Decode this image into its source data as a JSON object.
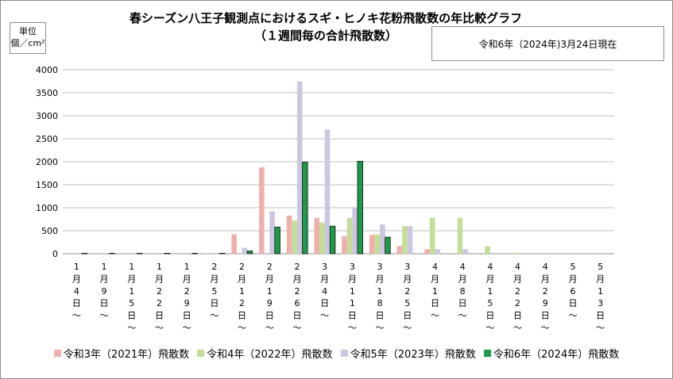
{
  "title_line1": "春シーズン八王子観測点におけるスギ・ヒノキ花粉飛散数の年比較グラフ",
  "title_line2": "（１週間毎の合計飛散数）",
  "unit_line1": "単位",
  "unit_line2": "個／cm²",
  "as_of": "令和6年（2024年)3月24日現在",
  "colors": {
    "s2021": "#efb0ad",
    "s2022": "#c4de97",
    "s2023": "#cdc6e0",
    "s2024": "#1d9a4a",
    "grid": "#bfbfbf",
    "axis": "#8c8c8c"
  },
  "chart_data": {
    "type": "bar",
    "title": "春シーズン八王子観測点におけるスギ・ヒノキ花粉飛散数の年比較グラフ（１週間毎の合計飛散数）",
    "ylabel": "単位 個／cm²",
    "ylim": [
      0,
      4000
    ],
    "yticks": [
      0,
      500,
      1000,
      1500,
      2000,
      2500,
      3000,
      3500,
      4000
    ],
    "grid": true,
    "legend": "bottom",
    "categories": [
      "1月4日～",
      "1月9日～",
      "1月15日～",
      "1月22日～",
      "1月29日～",
      "2月5日～",
      "2月12日～",
      "2月19日～",
      "2月26日～",
      "3月4日～",
      "3月11日～",
      "3月18日～",
      "3月25日～",
      "4月1日～",
      "4月8日～",
      "4月15日～",
      "4月22日～",
      "4月29日～",
      "5月6日～",
      "5月13日～"
    ],
    "series": [
      {
        "name": "令和3年（2021年）飛散数",
        "values": [
          0,
          0,
          0,
          0,
          0,
          5,
          420,
          1880,
          830,
          780,
          380,
          410,
          170,
          100,
          0,
          0,
          0,
          0,
          0,
          0
        ]
      },
      {
        "name": "令和4年（2022年）飛散数",
        "values": [
          0,
          0,
          0,
          0,
          0,
          0,
          0,
          0,
          720,
          680,
          780,
          420,
          600,
          780,
          780,
          160,
          20,
          0,
          0,
          0
        ]
      },
      {
        "name": "令和5年（2023年）飛散数",
        "values": [
          0,
          0,
          0,
          0,
          0,
          0,
          130,
          920,
          3750,
          2700,
          990,
          640,
          600,
          100,
          100,
          0,
          0,
          0,
          0,
          0
        ]
      },
      {
        "name": "令和6年（2024年）飛散数",
        "values": [
          10,
          10,
          10,
          10,
          10,
          10,
          60,
          580,
          1990,
          600,
          2010,
          360,
          null,
          null,
          null,
          null,
          null,
          null,
          null,
          null
        ]
      }
    ]
  },
  "legend_items": [
    {
      "label": "令和3年（2021年）飛散数"
    },
    {
      "label": "令和4年（2022年）飛散数"
    },
    {
      "label": "令和5年（2023年）飛散数"
    },
    {
      "label": "令和6年（2024年）飛散数"
    }
  ]
}
